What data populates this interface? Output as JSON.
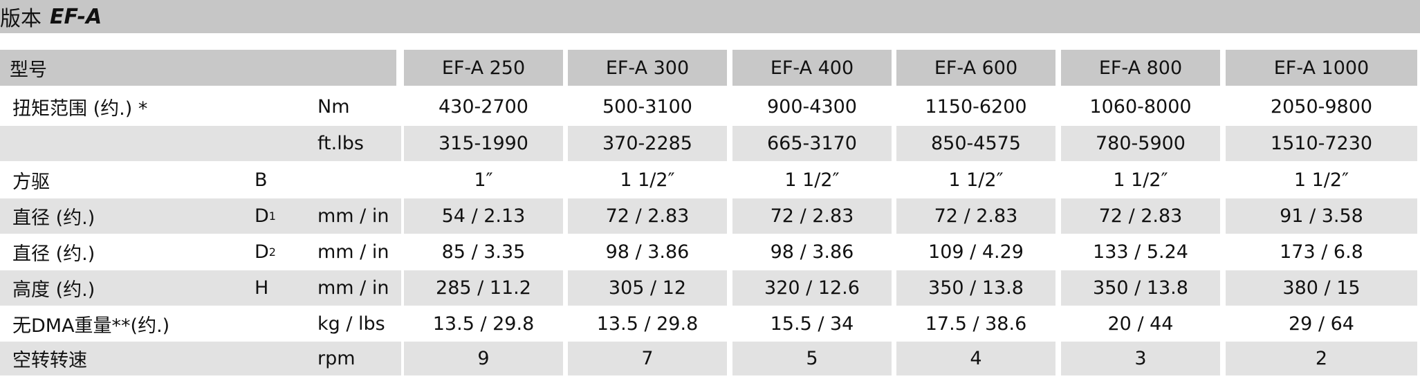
{
  "header": {
    "title": "版本",
    "model": "EF-A"
  },
  "table": {
    "corner": "型号",
    "columns": [
      "EF-A 250",
      "EF-A 300",
      "EF-A 400",
      "EF-A 600",
      "EF-A 800",
      "EF-A 1000"
    ],
    "rows": [
      {
        "label": "扭矩范围 (约.) *",
        "unit": "Nm",
        "values": [
          "430-2700",
          "500-3100",
          "900-4300",
          "1150-6200",
          "1060-8000",
          "2050-9800"
        ]
      },
      {
        "unit": "ft.lbs",
        "values": [
          "315-1990",
          "370-2285",
          "665-3170",
          "850-4575",
          "780-5900",
          "1510-7230"
        ]
      },
      {
        "label": "方驱",
        "symbol": {
          "text": "B"
        },
        "values": [
          "1″",
          "1 1/2″",
          "1 1/2″",
          "1 1/2″",
          "1 1/2″",
          "1 1/2″"
        ]
      },
      {
        "label": "直径 (约.)",
        "symbol": {
          "text": "D",
          "sub": "1"
        },
        "unit": "mm / in",
        "values": [
          "54 / 2.13",
          "72 / 2.83",
          "72 / 2.83",
          "72 / 2.83",
          "72 / 2.83",
          "91 / 3.58"
        ]
      },
      {
        "label": "直径 (约.)",
        "symbol": {
          "text": "D",
          "sub": "2"
        },
        "unit": "mm / in",
        "values": [
          "85 / 3.35",
          "98 / 3.86",
          "98 / 3.86",
          "109 / 4.29",
          "133 / 5.24",
          "173 / 6.8"
        ]
      },
      {
        "label": "高度 (约.)",
        "symbol": {
          "text": "H"
        },
        "unit": "mm / in",
        "values": [
          "285 / 11.2",
          "305 / 12",
          "320 / 12.6",
          "350 / 13.8",
          "350 / 13.8",
          "380 / 15"
        ]
      },
      {
        "label": "无DMA重量**(约.)",
        "unit": "kg / lbs",
        "values": [
          "13.5 / 29.8",
          "13.5 / 29.8",
          "15.5 / 34",
          "17.5 / 38.6",
          "20 / 44",
          "29 / 64"
        ]
      },
      {
        "label": "空转转速",
        "unit": "rpm",
        "values": [
          "9",
          "7",
          "5",
          "4",
          "3",
          "2"
        ]
      }
    ]
  }
}
